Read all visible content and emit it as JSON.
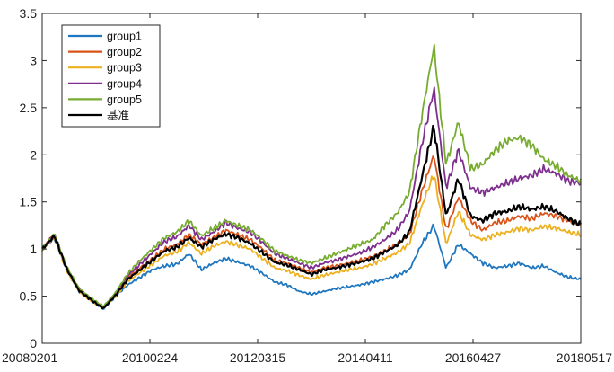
{
  "chart_data": {
    "type": "line",
    "title": "",
    "xlabel": "",
    "ylabel": "",
    "ylim": [
      0,
      3.5
    ],
    "yticks": [
      "0",
      "0.5",
      "1",
      "1.5",
      "2",
      "2.5",
      "3",
      "3.5"
    ],
    "xticks": [
      "20080201",
      "20100224",
      "20120315",
      "20140411",
      "20160427",
      "20180517"
    ],
    "legend_position": "top-left",
    "grid": false,
    "series": [
      {
        "name": "group1",
        "color": "#1f77c0",
        "values": [
          1.0,
          1.12,
          0.78,
          0.55,
          0.45,
          0.36,
          0.5,
          0.62,
          0.7,
          0.78,
          0.82,
          0.84,
          0.95,
          0.78,
          0.85,
          0.9,
          0.86,
          0.82,
          0.74,
          0.65,
          0.62,
          0.55,
          0.52,
          0.55,
          0.58,
          0.6,
          0.62,
          0.65,
          0.68,
          0.72,
          0.78,
          1.05,
          1.25,
          0.8,
          1.05,
          0.95,
          0.85,
          0.8,
          0.82,
          0.85,
          0.8,
          0.82,
          0.75,
          0.7,
          0.68
        ]
      },
      {
        "name": "group2",
        "color": "#d95319",
        "values": [
          1.0,
          1.14,
          0.8,
          0.57,
          0.47,
          0.38,
          0.52,
          0.7,
          0.8,
          0.9,
          1.0,
          1.05,
          1.15,
          1.05,
          1.12,
          1.2,
          1.15,
          1.1,
          1.0,
          0.88,
          0.85,
          0.8,
          0.75,
          0.8,
          0.82,
          0.85,
          0.88,
          0.92,
          0.98,
          1.05,
          1.15,
          1.6,
          2.0,
          1.2,
          1.55,
          1.3,
          1.2,
          1.28,
          1.3,
          1.35,
          1.32,
          1.38,
          1.35,
          1.3,
          1.25
        ]
      },
      {
        "name": "group3",
        "color": "#edb120",
        "values": [
          1.0,
          1.12,
          0.77,
          0.55,
          0.45,
          0.37,
          0.5,
          0.66,
          0.75,
          0.84,
          0.93,
          0.97,
          1.07,
          0.95,
          1.03,
          1.08,
          1.04,
          1.0,
          0.9,
          0.8,
          0.77,
          0.72,
          0.68,
          0.72,
          0.75,
          0.78,
          0.8,
          0.84,
          0.9,
          0.96,
          1.06,
          1.45,
          1.8,
          1.05,
          1.4,
          1.15,
          1.1,
          1.15,
          1.18,
          1.22,
          1.2,
          1.24,
          1.22,
          1.18,
          1.15
        ]
      },
      {
        "name": "group4",
        "color": "#7e2f8e",
        "values": [
          1.0,
          1.15,
          0.8,
          0.58,
          0.47,
          0.38,
          0.53,
          0.72,
          0.84,
          0.96,
          1.08,
          1.13,
          1.25,
          1.1,
          1.18,
          1.28,
          1.22,
          1.18,
          1.07,
          0.95,
          0.9,
          0.85,
          0.8,
          0.85,
          0.88,
          0.92,
          0.96,
          1.02,
          1.1,
          1.2,
          1.4,
          2.1,
          2.7,
          1.65,
          2.05,
          1.65,
          1.6,
          1.65,
          1.7,
          1.75,
          1.78,
          1.85,
          1.8,
          1.72,
          1.7
        ]
      },
      {
        "name": "group5",
        "color": "#77ac30",
        "values": [
          1.0,
          1.16,
          0.81,
          0.58,
          0.48,
          0.39,
          0.54,
          0.74,
          0.88,
          1.0,
          1.12,
          1.18,
          1.3,
          1.14,
          1.22,
          1.3,
          1.25,
          1.2,
          1.1,
          0.98,
          0.93,
          0.88,
          0.85,
          0.9,
          0.95,
          1.0,
          1.05,
          1.1,
          1.25,
          1.38,
          1.6,
          2.4,
          3.15,
          1.9,
          2.35,
          1.85,
          1.9,
          2.05,
          2.15,
          2.18,
          2.1,
          1.95,
          1.88,
          1.78,
          1.72
        ]
      },
      {
        "name": "基准",
        "color": "#000000",
        "values": [
          1.0,
          1.14,
          0.79,
          0.56,
          0.46,
          0.37,
          0.51,
          0.68,
          0.78,
          0.88,
          0.98,
          1.02,
          1.12,
          1.02,
          1.1,
          1.16,
          1.12,
          1.06,
          0.96,
          0.86,
          0.83,
          0.78,
          0.73,
          0.78,
          0.8,
          0.83,
          0.86,
          0.9,
          0.97,
          1.04,
          1.18,
          1.75,
          2.3,
          1.35,
          1.75,
          1.35,
          1.3,
          1.38,
          1.4,
          1.45,
          1.42,
          1.45,
          1.4,
          1.32,
          1.26
        ]
      }
    ]
  }
}
